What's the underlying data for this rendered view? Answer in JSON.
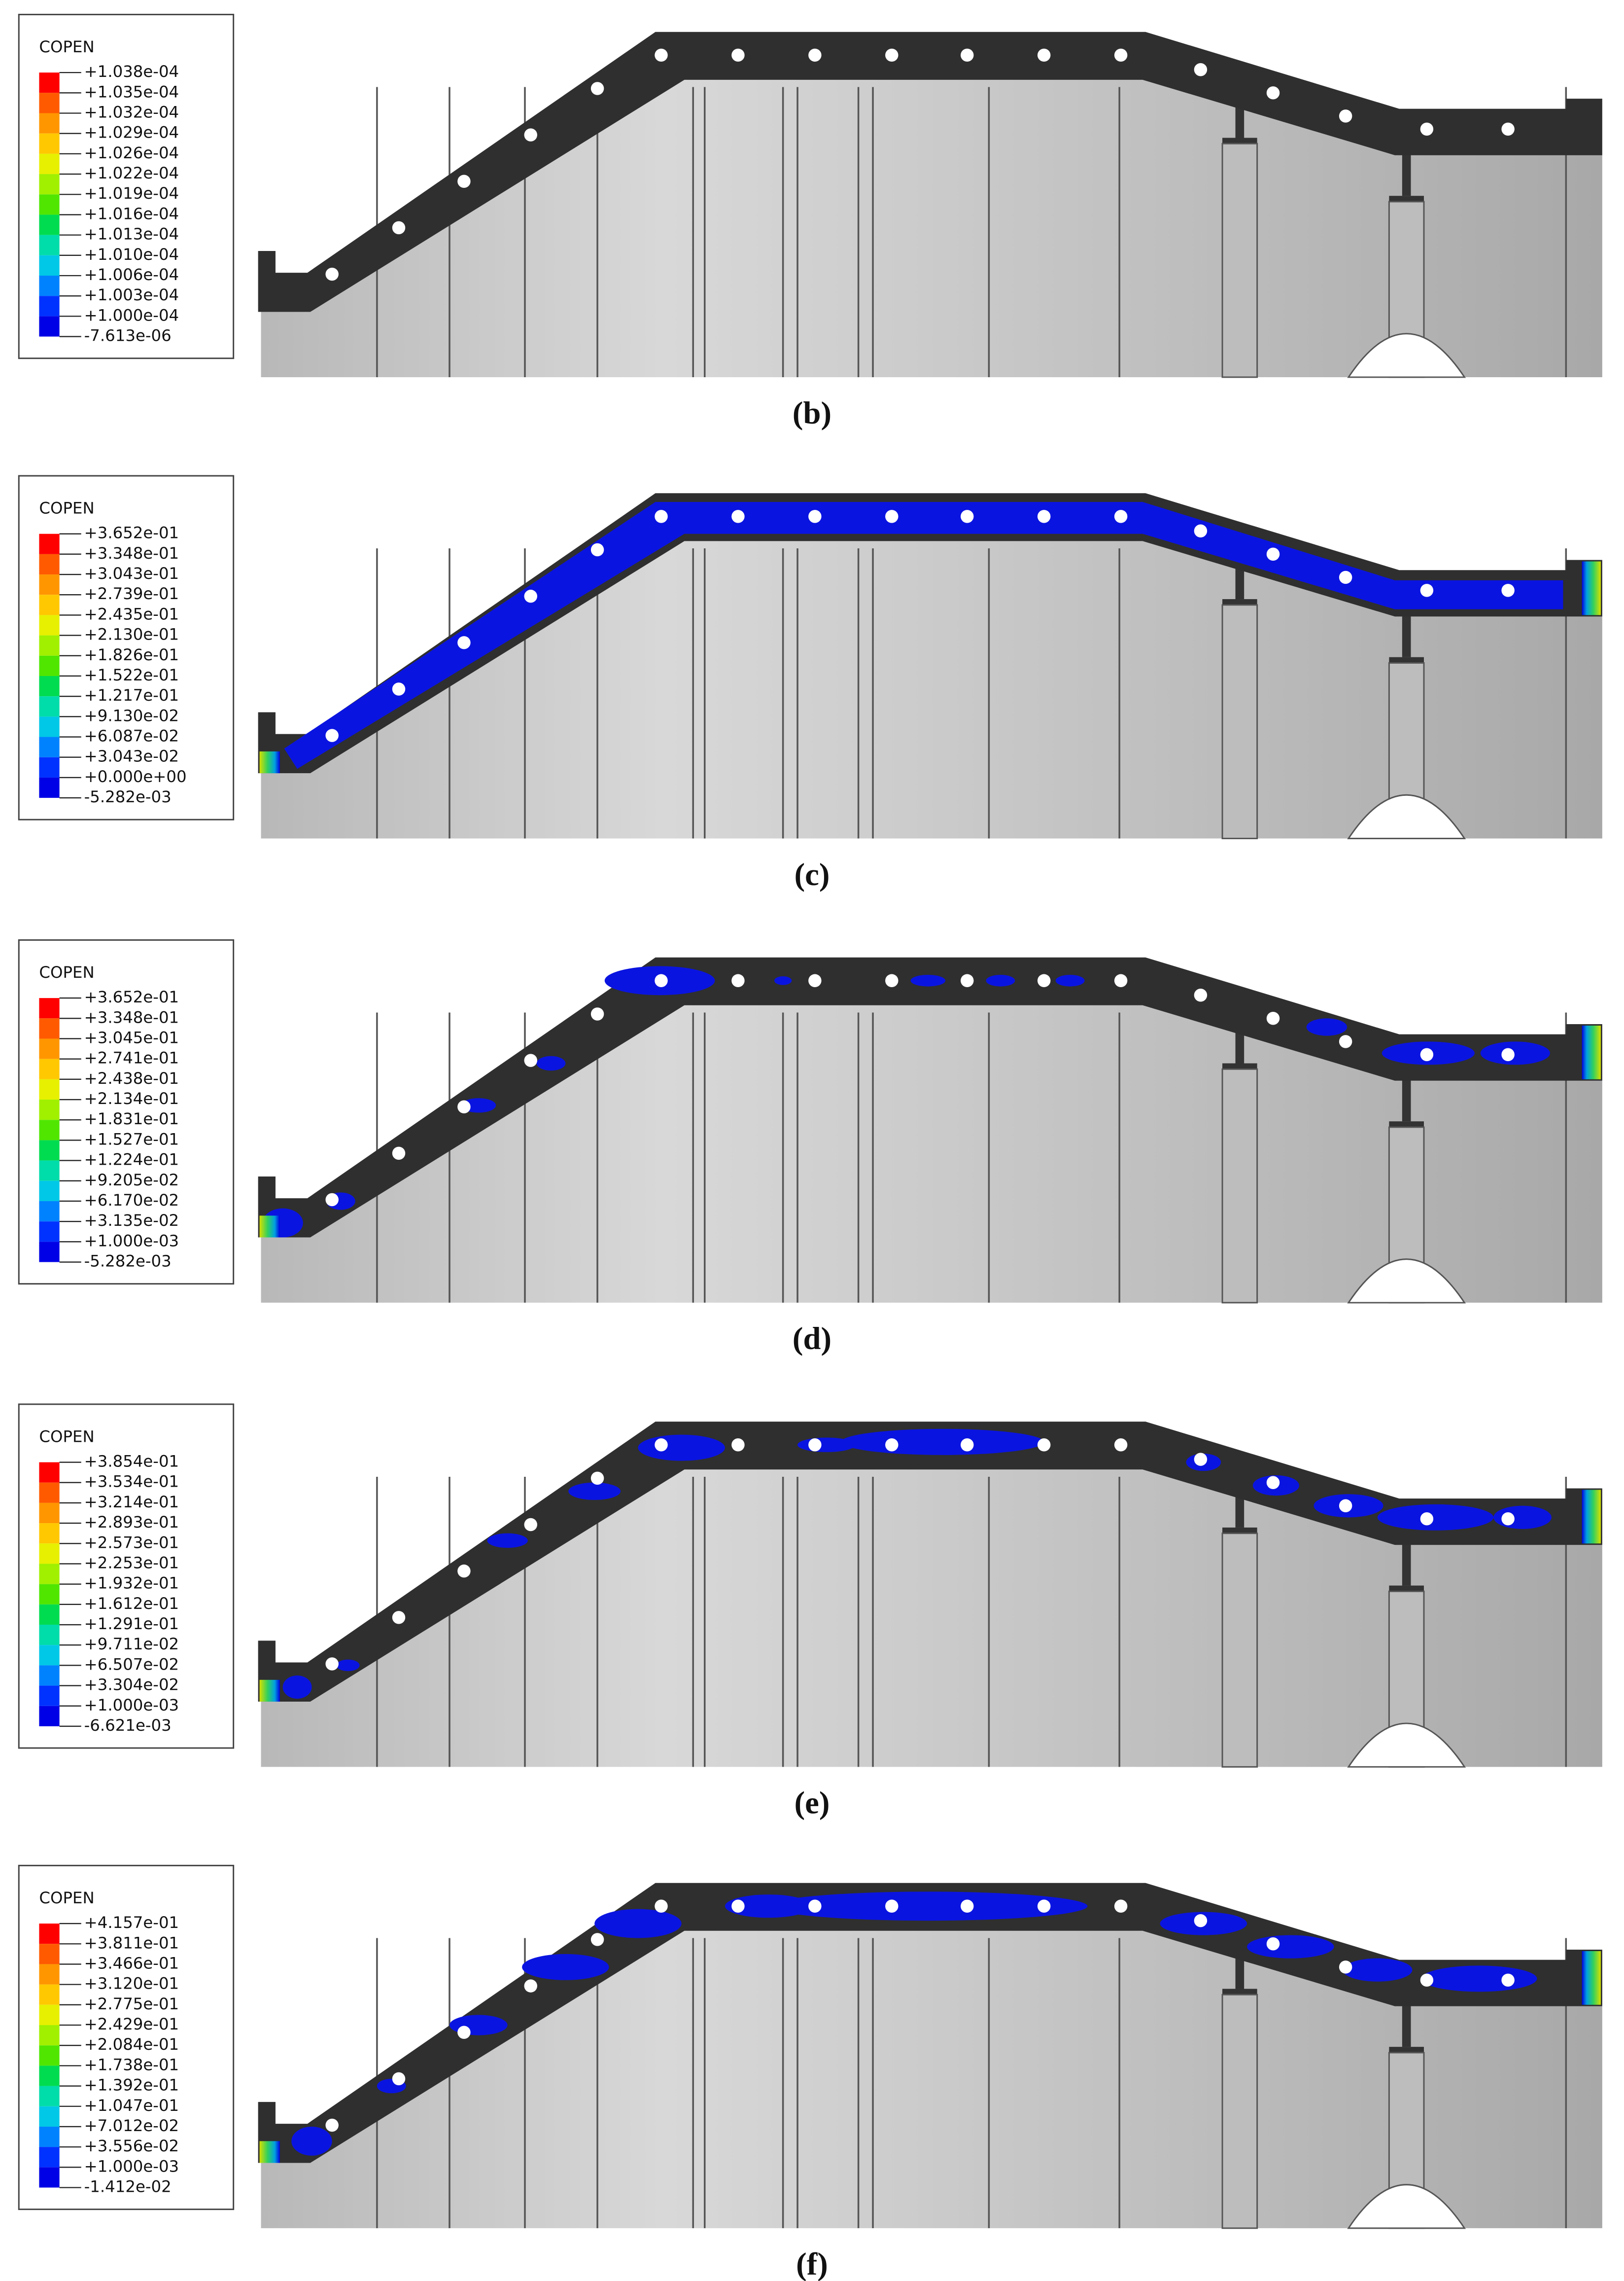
{
  "figure": {
    "legend_colors": [
      "#ff0000",
      "#ff5a00",
      "#ff9600",
      "#ffc800",
      "#e6f000",
      "#a0f000",
      "#50e600",
      "#00dc50",
      "#00dcaa",
      "#00c8e6",
      "#0082ff",
      "#0032ff",
      "#0000e6",
      "#3a3a3a"
    ],
    "panels": [
      {
        "caption": "(b)",
        "legend": {
          "title": "COPEN",
          "labels": [
            "+1.038e-04",
            "+1.035e-04",
            "+1.032e-04",
            "+1.029e-04",
            "+1.026e-04",
            "+1.022e-04",
            "+1.019e-04",
            "+1.016e-04",
            "+1.013e-04",
            "+1.010e-04",
            "+1.006e-04",
            "+1.003e-04",
            "+1.000e-04",
            "-7.613e-06"
          ]
        }
      },
      {
        "caption": "(c)",
        "legend": {
          "title": "COPEN",
          "labels": [
            "+3.652e-01",
            "+3.348e-01",
            "+3.043e-01",
            "+2.739e-01",
            "+2.435e-01",
            "+2.130e-01",
            "+1.826e-01",
            "+1.522e-01",
            "+1.217e-01",
            "+9.130e-02",
            "+6.087e-02",
            "+3.043e-02",
            "+0.000e+00",
            "-5.282e-03"
          ]
        }
      },
      {
        "caption": "(d)",
        "legend": {
          "title": "COPEN",
          "labels": [
            "+3.652e-01",
            "+3.348e-01",
            "+3.045e-01",
            "+2.741e-01",
            "+2.438e-01",
            "+2.134e-01",
            "+1.831e-01",
            "+1.527e-01",
            "+1.224e-01",
            "+9.205e-02",
            "+6.170e-02",
            "+3.135e-02",
            "+1.000e-03",
            "-5.282e-03"
          ]
        }
      },
      {
        "caption": "(e)",
        "legend": {
          "title": "COPEN",
          "labels": [
            "+3.854e-01",
            "+3.534e-01",
            "+3.214e-01",
            "+2.893e-01",
            "+2.573e-01",
            "+2.253e-01",
            "+1.932e-01",
            "+1.612e-01",
            "+1.291e-01",
            "+9.711e-02",
            "+6.507e-02",
            "+3.304e-02",
            "+1.000e-03",
            "-6.621e-03"
          ]
        }
      },
      {
        "caption": "(f)",
        "legend": {
          "title": "COPEN",
          "labels": [
            "+4.157e-01",
            "+3.811e-01",
            "+3.466e-01",
            "+3.120e-01",
            "+2.775e-01",
            "+2.429e-01",
            "+2.084e-01",
            "+1.738e-01",
            "+1.392e-01",
            "+1.047e-01",
            "+7.012e-02",
            "+3.556e-02",
            "+1.000e-03",
            "-1.412e-02"
          ]
        }
      }
    ]
  }
}
